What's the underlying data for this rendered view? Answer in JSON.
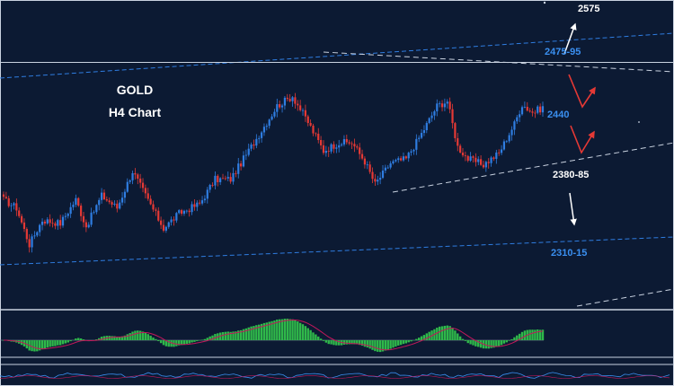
{
  "header": {
    "symbol": "GOLD",
    "timeframe": "H4 Chart"
  },
  "levels": {
    "upper_target": "2575",
    "resistance": "2475-95",
    "pivot": "2440",
    "support": "2380-85",
    "lower_target": "2310-15"
  },
  "colors": {
    "background": "#0c1a33",
    "bull_candle": "#2f7de1",
    "bear_candle": "#e53935",
    "channel_line": "#2f7de1",
    "trend_line": "#c9d2e0",
    "macd_hist": "#2fb84a",
    "macd_signal": "#c2185b",
    "label_blue": "#3a8ff0",
    "label_white": "#ffffff"
  },
  "chart_data": {
    "type": "candlestick",
    "instrument": "GOLD",
    "timeframe": "H4",
    "ylim": [
      2220,
      2600
    ],
    "waypoints": [
      {
        "i": 0,
        "price": 2355
      },
      {
        "i": 5,
        "price": 2345
      },
      {
        "i": 10,
        "price": 2300
      },
      {
        "i": 15,
        "price": 2330
      },
      {
        "i": 22,
        "price": 2326
      },
      {
        "i": 28,
        "price": 2355
      },
      {
        "i": 32,
        "price": 2322
      },
      {
        "i": 38,
        "price": 2360
      },
      {
        "i": 44,
        "price": 2345
      },
      {
        "i": 50,
        "price": 2390
      },
      {
        "i": 55,
        "price": 2360
      },
      {
        "i": 62,
        "price": 2320
      },
      {
        "i": 68,
        "price": 2338
      },
      {
        "i": 76,
        "price": 2350
      },
      {
        "i": 82,
        "price": 2380
      },
      {
        "i": 88,
        "price": 2380
      },
      {
        "i": 94,
        "price": 2410
      },
      {
        "i": 100,
        "price": 2440
      },
      {
        "i": 106,
        "price": 2470
      },
      {
        "i": 112,
        "price": 2482
      },
      {
        "i": 118,
        "price": 2450
      },
      {
        "i": 124,
        "price": 2415
      },
      {
        "i": 130,
        "price": 2425
      },
      {
        "i": 135,
        "price": 2425
      },
      {
        "i": 140,
        "price": 2402
      },
      {
        "i": 144,
        "price": 2374
      },
      {
        "i": 150,
        "price": 2400
      },
      {
        "i": 156,
        "price": 2405
      },
      {
        "i": 162,
        "price": 2436
      },
      {
        "i": 168,
        "price": 2470
      },
      {
        "i": 172,
        "price": 2476
      },
      {
        "i": 176,
        "price": 2420
      },
      {
        "i": 180,
        "price": 2405
      },
      {
        "i": 186,
        "price": 2398
      },
      {
        "i": 192,
        "price": 2412
      },
      {
        "i": 198,
        "price": 2448
      },
      {
        "i": 201,
        "price": 2472
      },
      {
        "i": 205,
        "price": 2462
      },
      {
        "i": 209,
        "price": 2468
      }
    ],
    "candle_count": 210,
    "annotations": [
      {
        "text": "2575",
        "price": 2575
      },
      {
        "text": "2475-95",
        "price": 2485
      },
      {
        "text": "2440",
        "price": 2440
      },
      {
        "text": "2380-85",
        "price": 2383
      },
      {
        "text": "2310-15",
        "price": 2312
      }
    ]
  }
}
